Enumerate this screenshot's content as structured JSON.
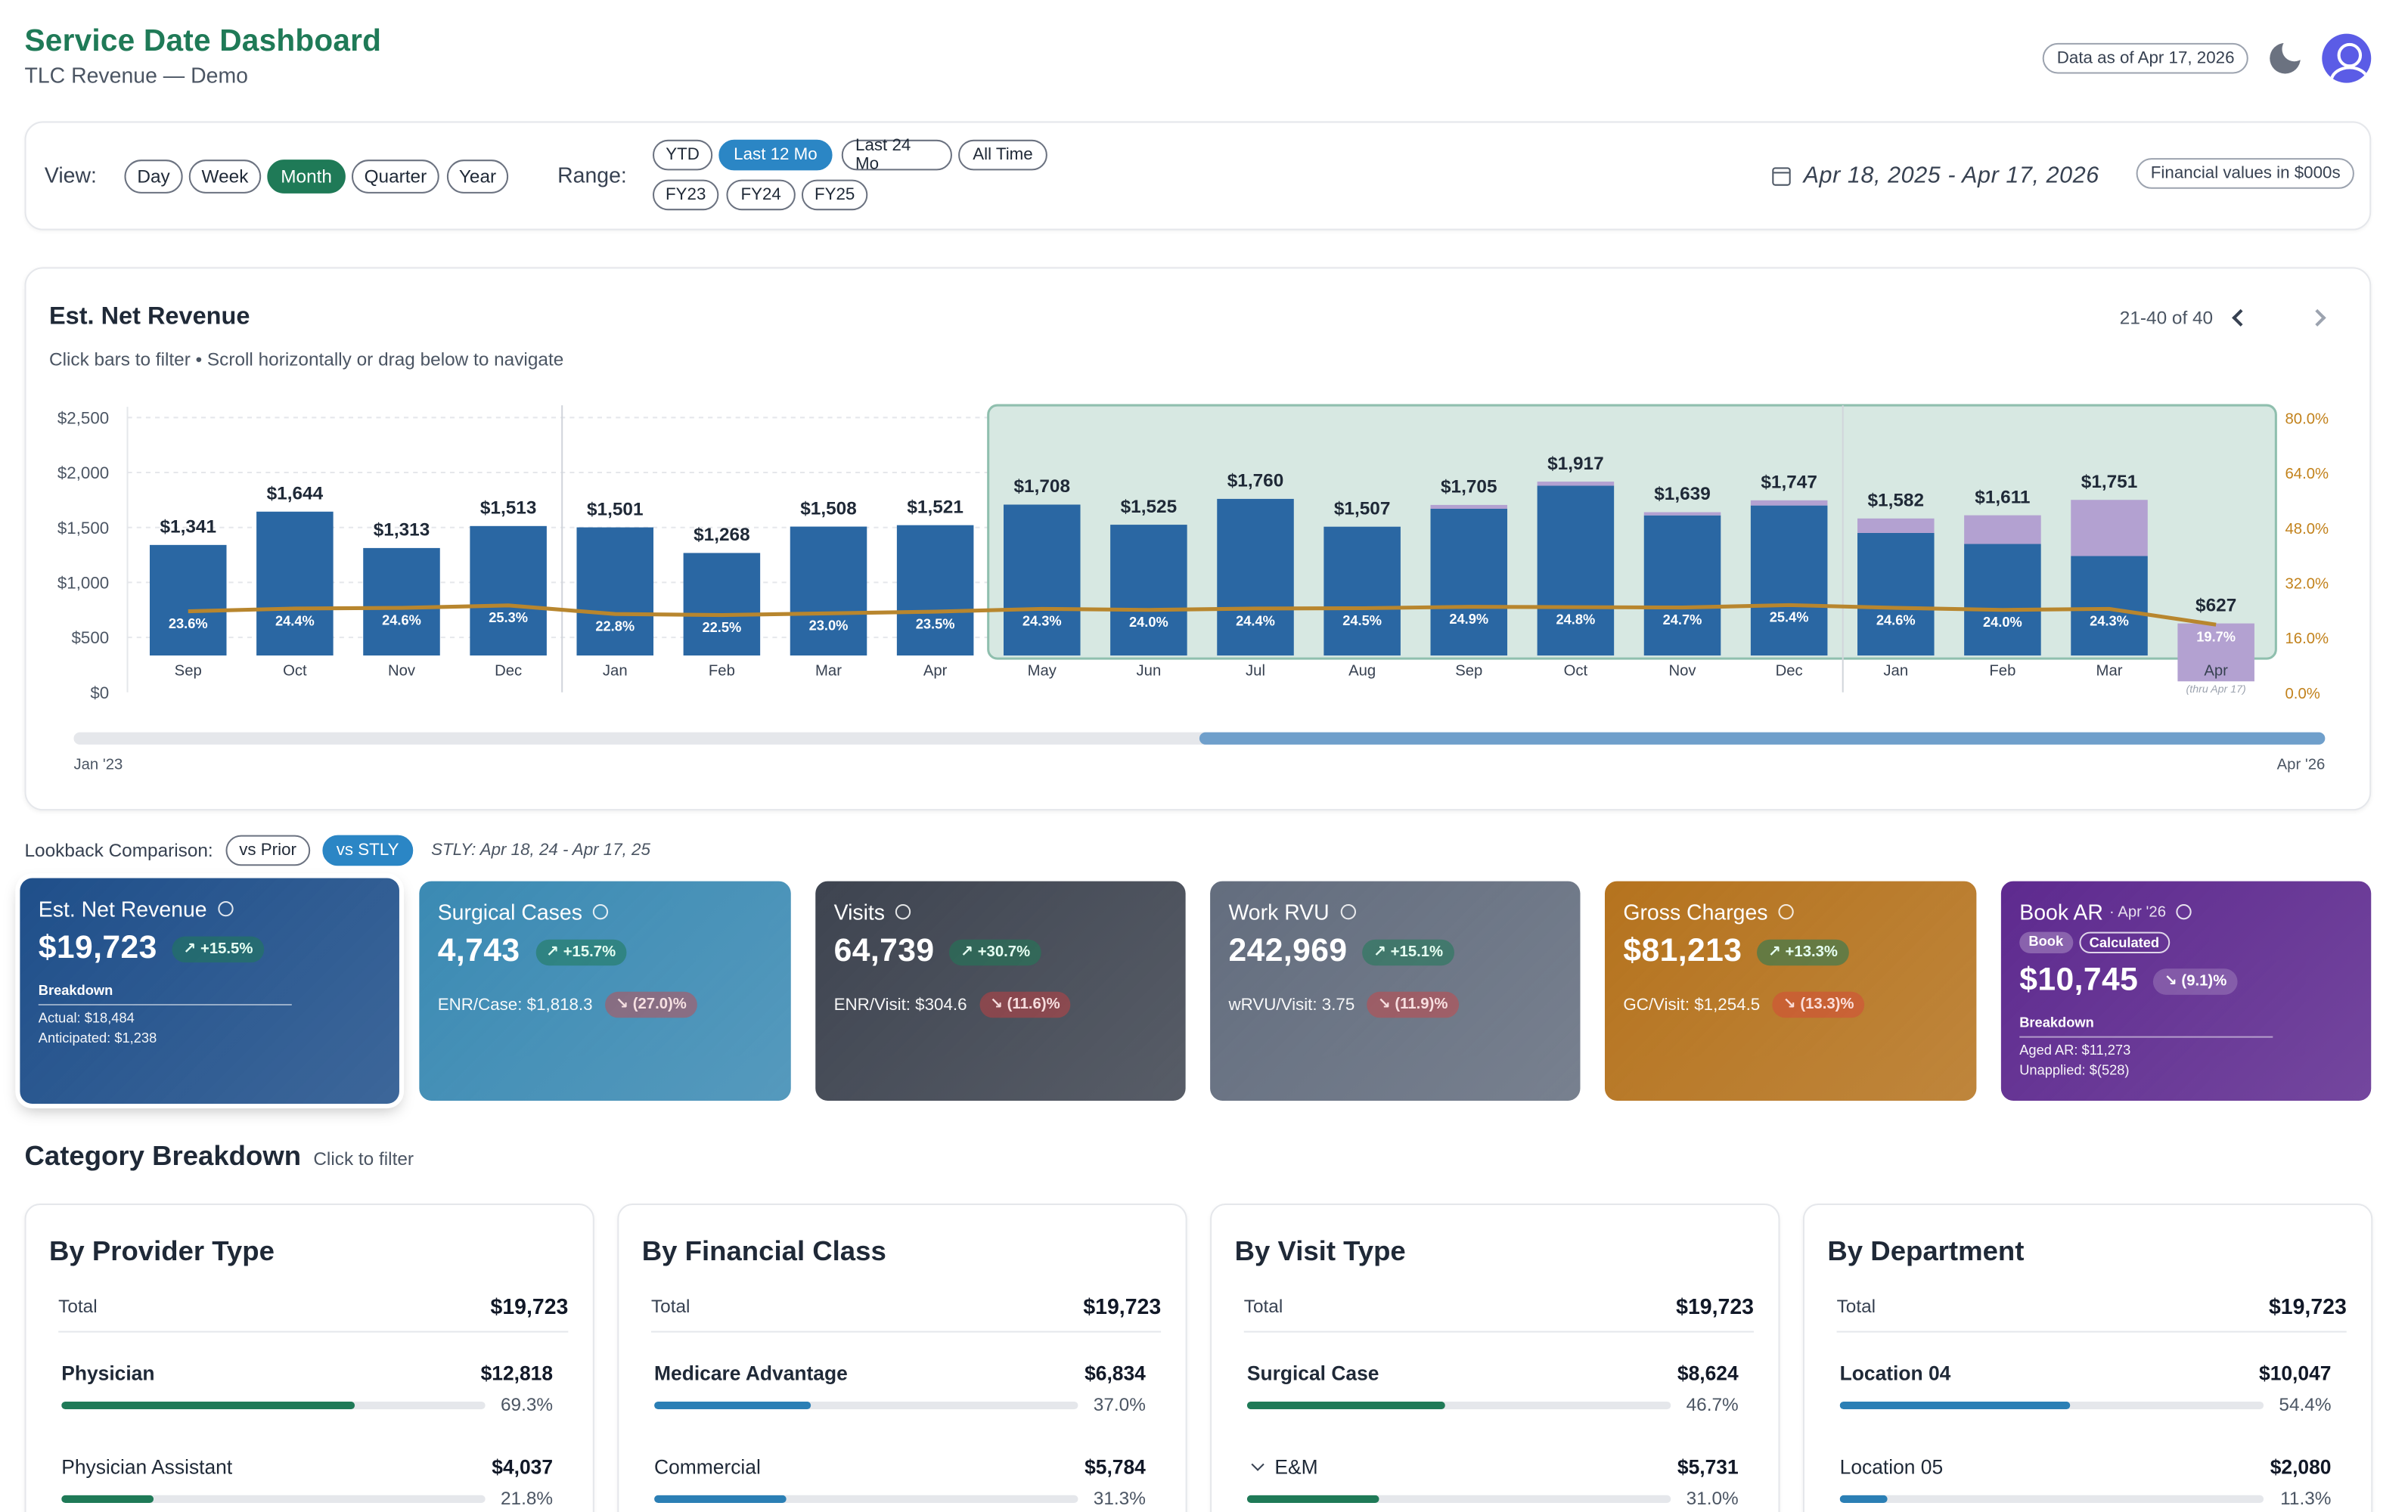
{
  "header": {
    "title": "Service Date Dashboard",
    "subtitle": "TLC Revenue — Demo",
    "data_as_of": "Data as of Apr 17, 2026",
    "theme_icon": "moon-icon",
    "avatar_icon": "user-icon"
  },
  "controls": {
    "view_label": "View:",
    "views": [
      "Day",
      "Week",
      "Month",
      "Quarter",
      "Year"
    ],
    "view_selected": "Month",
    "range_label": "Range:",
    "ranges_row1": [
      "YTD",
      "Last 12 Mo",
      "Last 24 Mo",
      "All Time"
    ],
    "ranges_row2": [
      "FY23",
      "FY24",
      "FY25"
    ],
    "range_selected": "Last 12 Mo",
    "date_range": "Apr 18, 2025  -  Apr 17, 2026",
    "financial_note": "Financial values in $000s"
  },
  "chart": {
    "title": "Est. Net Revenue",
    "subtitle": "Click bars to filter • Scroll horizontally or drag below to navigate",
    "pager": "21-40 of 40",
    "scroll_start": "Jan '23",
    "scroll_end": "Apr '26",
    "apr_note": "(thru Apr 17)"
  },
  "chart_data": {
    "type": "bar",
    "title": "Est. Net Revenue",
    "categories": [
      "Sep",
      "Oct",
      "Nov",
      "Dec",
      "Jan",
      "Feb",
      "Mar",
      "Apr",
      "May",
      "Jun",
      "Jul",
      "Aug",
      "Sep",
      "Oct",
      "Nov",
      "Dec",
      "Jan",
      "Feb",
      "Mar",
      "Apr"
    ],
    "value_labels": [
      "$1,341",
      "$1,644",
      "$1,313",
      "$1,513",
      "$1,501",
      "$1,268",
      "$1,508",
      "$1,521",
      "$1,708",
      "$1,525",
      "$1,760",
      "$1,507",
      "$1,705",
      "$1,917",
      "$1,639",
      "$1,747",
      "$1,582",
      "$1,611",
      "$1,751",
      "$627"
    ],
    "series": [
      {
        "name": "Actual",
        "values": [
          1341,
          1644,
          1313,
          1513,
          1501,
          1268,
          1508,
          1521,
          1708,
          1525,
          1760,
          1507,
          1670,
          1880,
          1610,
          1700,
          1450,
          1350,
          1240,
          100
        ]
      },
      {
        "name": "Anticipated",
        "values": [
          0,
          0,
          0,
          0,
          0,
          0,
          0,
          0,
          0,
          0,
          0,
          0,
          35,
          37,
          29,
          47,
          132,
          261,
          511,
          527
        ]
      }
    ],
    "line_series": {
      "values": [
        23.6,
        24.4,
        24.6,
        25.3,
        22.8,
        22.5,
        23.0,
        23.5,
        24.3,
        24.0,
        24.4,
        24.5,
        24.9,
        24.8,
        24.7,
        25.4,
        24.6,
        24.0,
        24.3,
        19.7
      ],
      "labels": [
        "23.6%",
        "24.4%",
        "24.6%",
        "25.3%",
        "22.8%",
        "22.5%",
        "23.0%",
        "23.5%",
        "24.3%",
        "24.0%",
        "24.4%",
        "24.5%",
        "24.9%",
        "24.8%",
        "24.7%",
        "25.4%",
        "24.6%",
        "24.0%",
        "24.3%",
        "19.7%"
      ]
    },
    "ylim": [
      0,
      2500
    ],
    "y_ticks": [
      "$0",
      "$500",
      "$1,000",
      "$1,500",
      "$2,000",
      "$2,500"
    ],
    "y2lim": [
      0,
      80
    ],
    "y2_ticks": [
      "0.0%",
      "16.0%",
      "32.0%",
      "48.0%",
      "64.0%",
      "80.0%"
    ],
    "highlight_range": [
      8,
      19
    ],
    "year_separators_after": [
      3,
      15
    ],
    "colors": {
      "bar": "#2a67a3",
      "anticipated": "#b3a1d1",
      "line": "#b8862e",
      "highlight": "#d7e8e2",
      "highlight_border": "#8fbfae",
      "y2": "#c2821c"
    }
  },
  "lookback": {
    "label": "Lookback Comparison:",
    "options": [
      "vs Prior",
      "vs STLY"
    ],
    "selected": "vs STLY",
    "stly_note": "STLY: Apr 18, 24 - Apr 17, 25"
  },
  "kpis": [
    {
      "title": "Est. Net Revenue",
      "value": "$19,723",
      "trend": "+15.5%",
      "breakdown_title": "Breakdown",
      "lines": [
        "Actual: $18,484",
        "Anticipated: $1,238"
      ],
      "color": "#1f4f8a"
    },
    {
      "title": "Surgical Cases",
      "value": "4,743",
      "trend": "+15.7%",
      "sub": "ENR/Case: $1,818.3",
      "sub_trend": "(27.0)%",
      "color": "#3b8ab3"
    },
    {
      "title": "Visits",
      "value": "64,739",
      "trend": "+30.7%",
      "sub": "ENR/Visit: $304.6",
      "sub_trend": "(11.6)%",
      "color": "#3e4450"
    },
    {
      "title": "Work RVU",
      "value": "242,969",
      "trend": "+15.1%",
      "sub": "wRVU/Visit: 3.75",
      "sub_trend": "(11.9)%",
      "color": "#636d7e"
    },
    {
      "title": "Gross Charges",
      "value": "$81,213",
      "trend": "+13.3%",
      "sub": "GC/Visit: $1,254.5",
      "sub_trend": "(13.3)%",
      "color": "#b5731e"
    },
    {
      "title": "Book AR",
      "title_suffix": "· Apr '26",
      "tags": [
        "Book",
        "Calculated"
      ],
      "value": "$10,745",
      "trend": "(9.1)%",
      "breakdown_title": "Breakdown",
      "lines": [
        "Aged AR: $11,273",
        "Unapplied: $(528)"
      ],
      "color": "#5e2a8f"
    }
  ],
  "category": {
    "title": "Category Breakdown",
    "hint": "Click to filter",
    "cards": [
      {
        "title": "By Provider Type",
        "total_label": "Total",
        "total": "$19,723",
        "rows": [
          {
            "name": "Physician",
            "amount": "$12,818",
            "pct": 69.3,
            "pct_label": "69.3%",
            "color": "#1f7a57",
            "bold": true
          },
          {
            "name": "Physician Assistant",
            "amount": "$4,037",
            "pct": 21.8,
            "pct_label": "21.8%",
            "color": "#1f7a57",
            "bold": false
          }
        ]
      },
      {
        "title": "By Financial Class",
        "total_label": "Total",
        "total": "$19,723",
        "rows": [
          {
            "name": "Medicare Advantage",
            "amount": "$6,834",
            "pct": 37.0,
            "pct_label": "37.0%",
            "color": "#2b7fb5",
            "bold": true
          },
          {
            "name": "Commercial",
            "amount": "$5,784",
            "pct": 31.3,
            "pct_label": "31.3%",
            "color": "#2b7fb5",
            "bold": false
          }
        ]
      },
      {
        "title": "By Visit Type",
        "total_label": "Total",
        "total": "$19,723",
        "rows": [
          {
            "name": "Surgical Case",
            "amount": "$8,624",
            "pct": 46.7,
            "pct_label": "46.7%",
            "color": "#1f7a57",
            "bold": true
          },
          {
            "name": "E&M",
            "amount": "$5,731",
            "pct": 31.0,
            "pct_label": "31.0%",
            "color": "#1f7a57",
            "bold": false,
            "expandable": true
          }
        ]
      },
      {
        "title": "By Department",
        "total_label": "Total",
        "total": "$19,723",
        "rows": [
          {
            "name": "Location 04",
            "amount": "$10,047",
            "pct": 54.4,
            "pct_label": "54.4%",
            "color": "#2b7fb5",
            "bold": true
          },
          {
            "name": "Location 05",
            "amount": "$2,080",
            "pct": 11.3,
            "pct_label": "11.3%",
            "color": "#2b7fb5",
            "bold": false
          }
        ]
      }
    ]
  }
}
